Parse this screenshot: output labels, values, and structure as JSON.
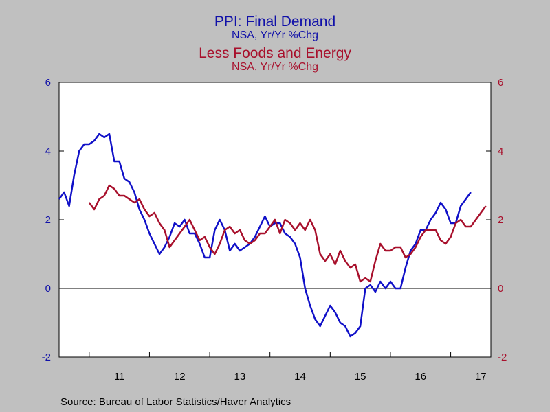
{
  "titles": {
    "line1": "PPI: Final Demand",
    "line2": "NSA, Yr/Yr %Chg",
    "line3": "Less Foods and Energy",
    "line4": "NSA, Yr/Yr %Chg"
  },
  "source": "Source:  Bureau of Labor Statistics/Haver Analytics",
  "colors": {
    "series1": "#1010c8",
    "series2": "#a8102c",
    "left_axis": "#1010a8",
    "right_axis": "#a8102c"
  },
  "chart_data": {
    "type": "line",
    "x_unit": "month",
    "x_start": "2010-07",
    "x_end": "2017-09",
    "x_tick_labels": [
      "11",
      "12",
      "13",
      "14",
      "15",
      "16",
      "17"
    ],
    "ylim_left": [
      -2,
      6
    ],
    "ylim_right": [
      -2,
      6
    ],
    "yticks": [
      "-2",
      "0",
      "2",
      "4",
      "6"
    ],
    "grid": false,
    "zero_line": true,
    "series": [
      {
        "name": "PPI: Final Demand",
        "axis": "left",
        "start": "2010-07",
        "values": [
          2.6,
          2.8,
          2.4,
          3.3,
          4.0,
          4.2,
          4.2,
          4.3,
          4.5,
          4.4,
          4.5,
          3.7,
          3.7,
          3.2,
          3.1,
          2.8,
          2.3,
          2.0,
          1.6,
          1.3,
          1.0,
          1.2,
          1.5,
          1.9,
          1.8,
          2.0,
          1.6,
          1.6,
          1.3,
          0.9,
          0.9,
          1.7,
          2.0,
          1.7,
          1.1,
          1.3,
          1.1,
          1.2,
          1.3,
          1.5,
          1.8,
          2.1,
          1.8,
          1.9,
          1.9,
          1.6,
          1.5,
          1.3,
          0.9,
          0.0,
          -0.5,
          -0.9,
          -1.1,
          -0.8,
          -0.5,
          -0.7,
          -1.0,
          -1.1,
          -1.4,
          -1.3,
          -1.1,
          0.0,
          0.1,
          -0.1,
          0.2,
          0.0,
          0.2,
          0.0,
          0.0,
          0.6,
          1.1,
          1.3,
          1.7,
          1.7,
          2.0,
          2.2,
          2.5,
          2.3,
          1.9,
          1.9,
          2.4,
          2.6,
          2.8
        ]
      },
      {
        "name": "Less Foods and Energy",
        "axis": "right",
        "start": "2011-01",
        "values": [
          2.5,
          2.3,
          2.6,
          2.7,
          3.0,
          2.9,
          2.7,
          2.7,
          2.6,
          2.5,
          2.6,
          2.3,
          2.1,
          2.2,
          1.9,
          1.7,
          1.2,
          1.4,
          1.6,
          1.8,
          2.0,
          1.7,
          1.4,
          1.5,
          1.2,
          1.0,
          1.3,
          1.7,
          1.8,
          1.6,
          1.7,
          1.4,
          1.3,
          1.4,
          1.6,
          1.6,
          1.8,
          2.0,
          1.6,
          2.0,
          1.9,
          1.7,
          1.9,
          1.7,
          2.0,
          1.7,
          1.0,
          0.8,
          1.0,
          0.7,
          1.1,
          0.8,
          0.6,
          0.7,
          0.2,
          0.3,
          0.2,
          0.8,
          1.3,
          1.1,
          1.1,
          1.2,
          1.2,
          0.9,
          1.0,
          1.2,
          1.5,
          1.7,
          1.7,
          1.7,
          1.4,
          1.3,
          1.5,
          1.9,
          2.0,
          1.8,
          1.8,
          2.0,
          2.2,
          2.4
        ]
      }
    ]
  }
}
